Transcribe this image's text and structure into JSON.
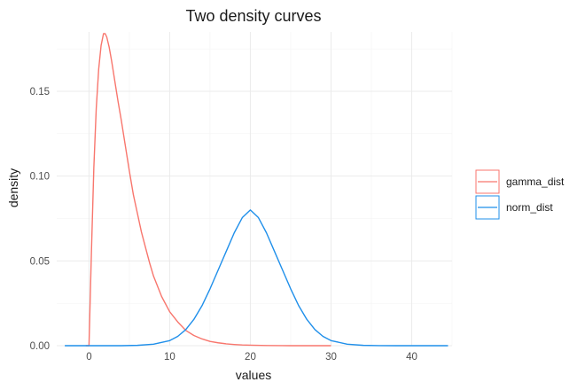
{
  "chart_data": {
    "type": "line",
    "title": "Two density curves",
    "xlabel": "values",
    "ylabel": "density",
    "xlim": [
      -4,
      45
    ],
    "ylim": [
      0,
      0.185
    ],
    "x_ticks": [
      0,
      10,
      20,
      30,
      40
    ],
    "y_ticks": [
      0.0,
      0.05,
      0.1,
      0.15
    ],
    "y_tick_labels": [
      "0.00",
      "0.05",
      "0.10",
      "0.15"
    ],
    "grid": true,
    "legend_position": "right",
    "series": [
      {
        "name": "gamma_dist",
        "color": "#f8766d",
        "x": [
          -0.4,
          0,
          0.3,
          0.6,
          0.9,
          1.2,
          1.5,
          1.8,
          2.0,
          2.2,
          2.5,
          2.8,
          3.2,
          3.6,
          4.0,
          4.5,
          5.0,
          5.5,
          6.0,
          6.5,
          7.0,
          7.5,
          8.0,
          9.0,
          10.0,
          11.0,
          12.0,
          13.0,
          14.0,
          15.0,
          16.0,
          17.0,
          18.0,
          19.0,
          20.0,
          22.0,
          24.0,
          25.0,
          27.0,
          30.0
        ],
        "values": [
          0.0,
          0.0,
          0.055,
          0.105,
          0.14,
          0.163,
          0.177,
          0.184,
          0.184,
          0.182,
          0.176,
          0.168,
          0.156,
          0.144,
          0.133,
          0.118,
          0.103,
          0.089,
          0.078,
          0.067,
          0.058,
          0.049,
          0.041,
          0.029,
          0.02,
          0.014,
          0.009,
          0.006,
          0.004,
          0.0025,
          0.0017,
          0.0011,
          0.0007,
          0.0004,
          0.0003,
          0.0001,
          5e-05,
          0.0,
          0.0,
          0.0
        ]
      },
      {
        "name": "norm_dist",
        "color": "#1f8fea",
        "x": [
          -3,
          0,
          2,
          4,
          6,
          8,
          10,
          11,
          12,
          13,
          14,
          15,
          16,
          17,
          18,
          19,
          20,
          21,
          22,
          23,
          24,
          25,
          26,
          27,
          28,
          29,
          30,
          32,
          34,
          36,
          38,
          40,
          42,
          44.5
        ],
        "values": [
          0.0,
          0.0,
          0.0,
          0.0,
          0.0002,
          0.0009,
          0.003,
          0.0055,
          0.0095,
          0.0155,
          0.0235,
          0.0335,
          0.0445,
          0.0555,
          0.0665,
          0.0755,
          0.08,
          0.0755,
          0.0665,
          0.0555,
          0.0445,
          0.0335,
          0.0235,
          0.0155,
          0.0095,
          0.0055,
          0.003,
          0.0009,
          0.0002,
          5e-05,
          0.0,
          0.0,
          0.0,
          0.0
        ]
      }
    ]
  }
}
